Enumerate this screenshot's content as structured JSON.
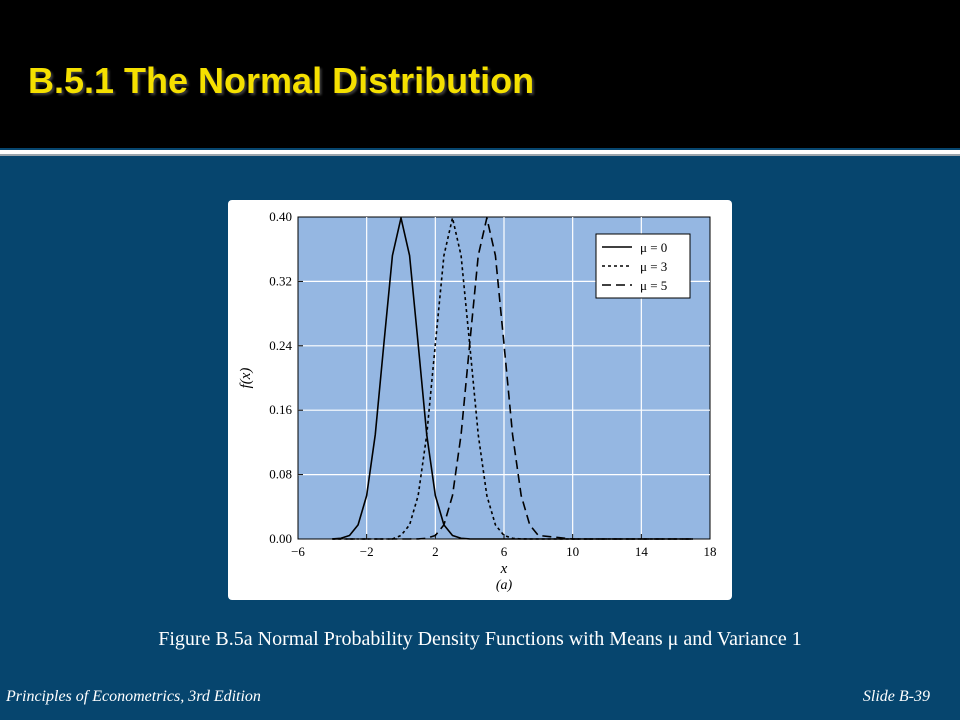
{
  "slide": {
    "title": "B.5.1 The Normal Distribution",
    "caption": "Figure B.5a Normal Probability Density Functions with Means μ and Variance 1",
    "footer_left": "Principles of Econometrics, 3rd Edition",
    "footer_right": "Slide B-39"
  },
  "colors": {
    "background": "#06456e",
    "header": "#000000",
    "title": "#f5e000",
    "plot_area": "#95b7e2"
  },
  "chart_data": {
    "type": "line",
    "title": "",
    "xlabel": "x",
    "ylabel": "f(x)",
    "sublabel": "(a)",
    "xlim": [
      -6,
      18
    ],
    "ylim": [
      0,
      0.4
    ],
    "xticks": [
      -6,
      -2,
      2,
      6,
      10,
      14,
      18
    ],
    "xtick_labels": [
      "−6",
      "−2",
      "2",
      "6",
      "10",
      "14",
      "18"
    ],
    "yticks": [
      0,
      0.08,
      0.16,
      0.24,
      0.32,
      0.4
    ],
    "ytick_labels": [
      "0.00",
      "0.08",
      "0.16",
      "0.24",
      "0.32",
      "0.40"
    ],
    "grid": true,
    "legend_position": "top-right",
    "x": [
      -4,
      -3.5,
      -3,
      -2.5,
      -2,
      -1.5,
      -1,
      -0.5,
      0,
      0.5,
      1,
      1.5,
      2,
      2.5,
      3,
      3.5,
      4,
      4.5,
      5,
      5.5,
      6,
      6.5,
      7,
      7.5,
      8,
      10,
      14,
      17
    ],
    "series": [
      {
        "name": "μ = 0",
        "style": "solid",
        "values": [
          0.0001,
          0.0009,
          0.0044,
          0.0175,
          0.054,
          0.1295,
          0.242,
          0.3521,
          0.3989,
          0.3521,
          0.242,
          0.1295,
          0.054,
          0.0175,
          0.0044,
          0.0009,
          0.0001,
          0.0,
          0.0,
          0.0,
          0.0,
          0.0,
          0.0,
          0.0,
          0.0,
          0.0,
          0.0,
          0.0
        ]
      },
      {
        "name": "μ = 3",
        "style": "dotted",
        "values": [
          0.0,
          0.0,
          0.0,
          0.0,
          0.0,
          0.0,
          0.0,
          0.0,
          0.0044,
          0.0175,
          0.054,
          0.1295,
          0.242,
          0.3521,
          0.3989,
          0.3521,
          0.242,
          0.1295,
          0.054,
          0.0175,
          0.0044,
          0.0009,
          0.0001,
          0.0,
          0.0,
          0.0,
          0.0,
          0.0
        ]
      },
      {
        "name": "μ = 5",
        "style": "dashed",
        "values": [
          0.0,
          0.0,
          0.0,
          0.0,
          0.0,
          0.0,
          0.0,
          0.0,
          0.0,
          0.0,
          0.0001,
          0.0009,
          0.0044,
          0.0175,
          0.054,
          0.1295,
          0.242,
          0.3521,
          0.3989,
          0.3521,
          0.242,
          0.1295,
          0.054,
          0.0175,
          0.0044,
          0.0,
          0.0,
          0.0
        ]
      }
    ]
  }
}
